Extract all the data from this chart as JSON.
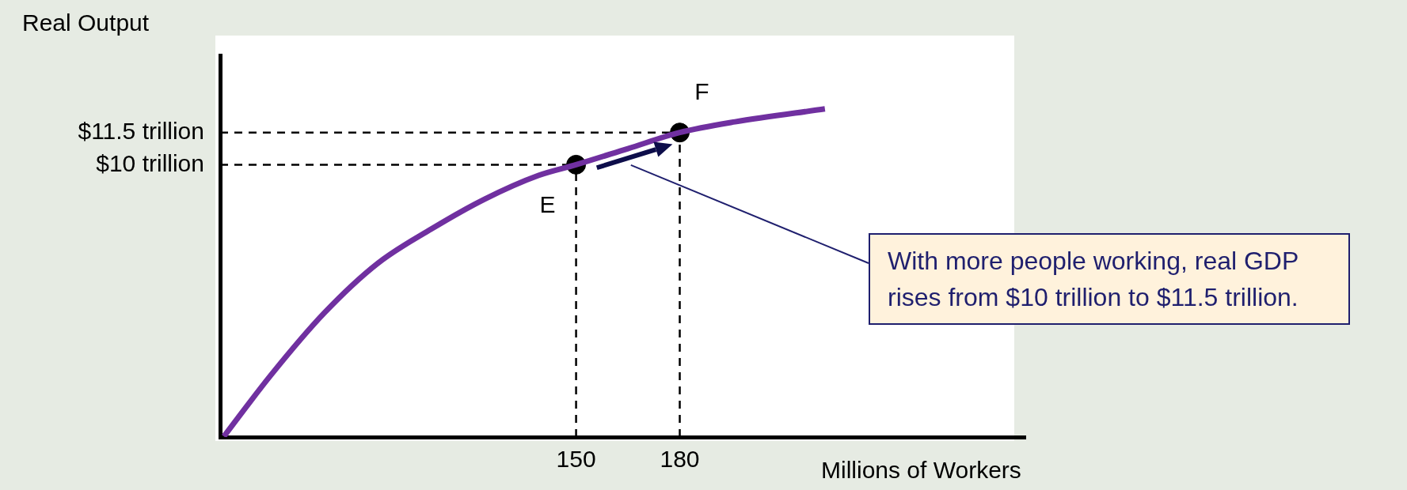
{
  "chart_data": {
    "type": "line",
    "xlabel": "Millions of Workers",
    "ylabel": "Real Output",
    "xlim": [
      47,
      280
    ],
    "ylim": [
      -2.7,
      15.1
    ],
    "xticks": [
      150,
      180
    ],
    "yticks": [
      {
        "value": 10,
        "label": "$10 trillion"
      },
      {
        "value": 11.5,
        "label": "$11.5 trillion"
      }
    ],
    "grid": false,
    "legend": false,
    "series": [
      {
        "color": "#7030a0",
        "marker": "none",
        "x": [
          48.1,
          61.6,
          77.1,
          92.6,
          108.1,
          123.6,
          139.1,
          150,
          165,
          180,
          196,
          222
        ],
        "values": [
          -2.67,
          0.17,
          3.08,
          5.4,
          7.0,
          8.4,
          9.5,
          10,
          10.75,
          11.5,
          12.0,
          12.6
        ]
      },
      {
        "type": "scatter",
        "color": "#000000",
        "marker": "circle",
        "x": [
          150,
          180
        ],
        "values": [
          10,
          11.5
        ]
      }
    ],
    "ref_lines": [
      {
        "axis": "y",
        "value": 10,
        "line_style": "dashed",
        "color": "#000000"
      },
      {
        "axis": "y",
        "value": 11.5,
        "line_style": "dashed",
        "color": "#000000"
      },
      {
        "axis": "x",
        "value": 150,
        "line_style": "dashed",
        "color": "#000000"
      },
      {
        "axis": "x",
        "value": 180,
        "line_style": "dashed",
        "color": "#000000"
      }
    ],
    "annotations": [
      {
        "text": "E",
        "x": 150,
        "y": 10
      },
      {
        "text": "F",
        "x": 180,
        "y": 11.5
      },
      "With more people working, real GDP rises from $10 trillion to $11.5 trillion."
    ]
  }
}
